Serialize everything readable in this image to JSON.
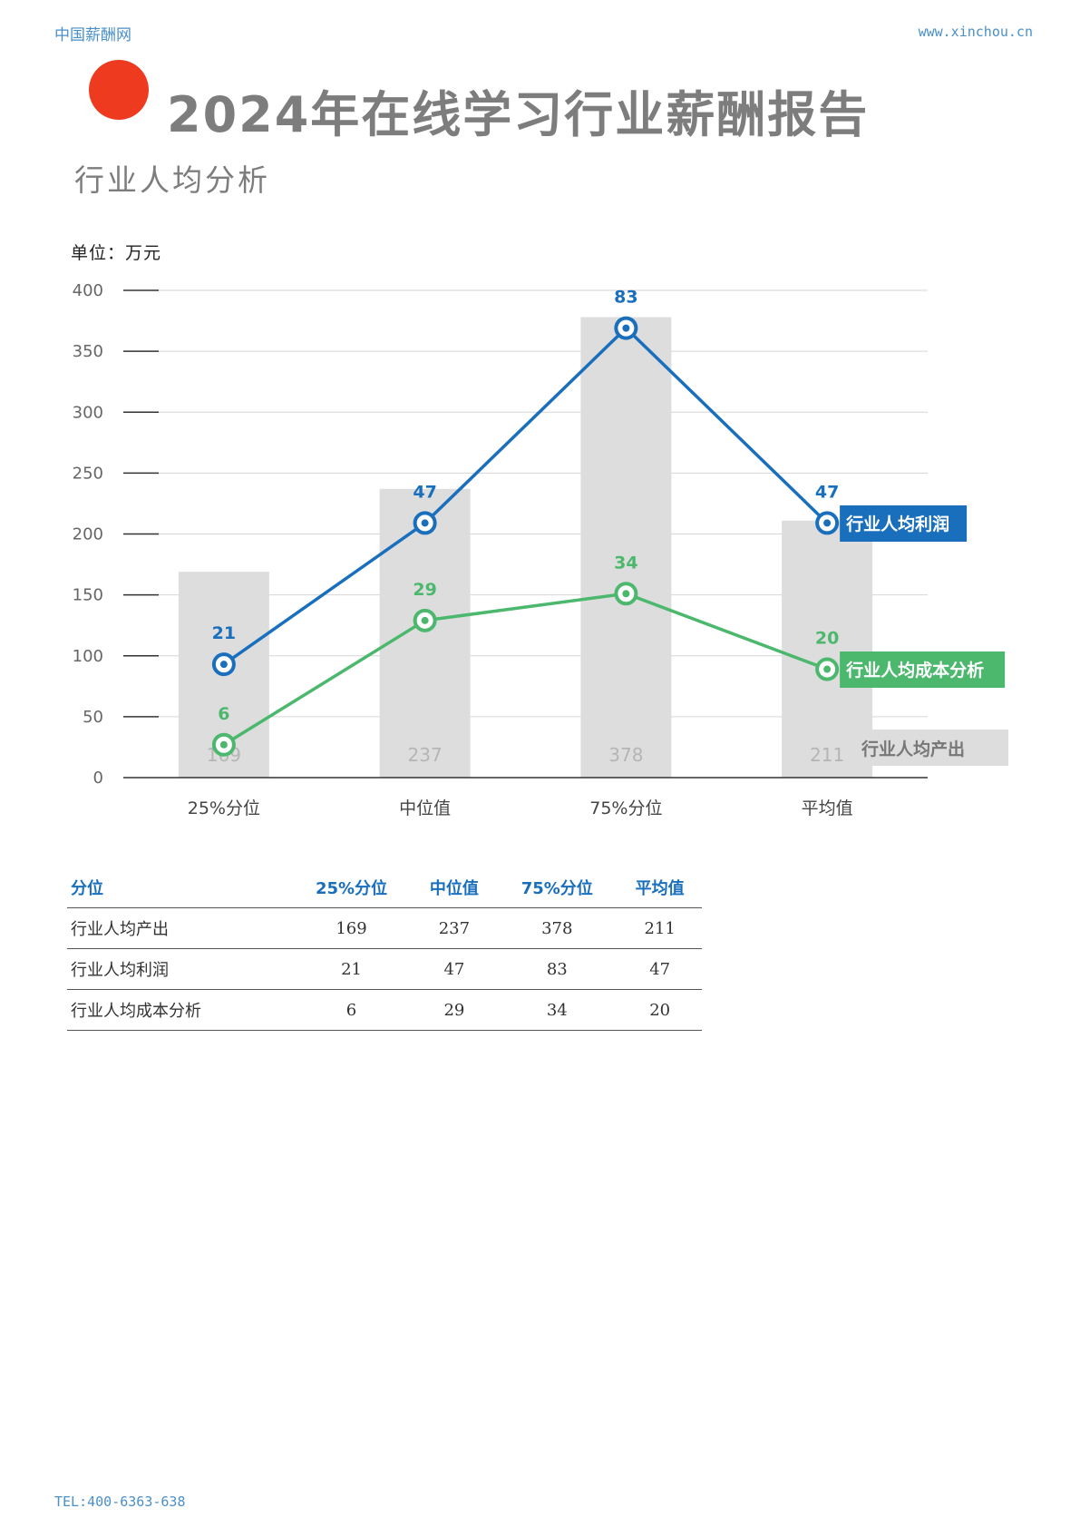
{
  "header": {
    "site_name": "中国薪酬网",
    "site_url": "www.xinchou.cn"
  },
  "page": {
    "title": "2024年在线学习行业薪酬报告",
    "subtitle": "行业人均分析",
    "unit_label": "单位：万元"
  },
  "colors": {
    "accent_dot": "#ee3a1f",
    "bar": "#dddddd",
    "profit": "#1a6fbd",
    "cost": "#4cb86e",
    "text_gray": "#7d7d7d"
  },
  "chart_data": {
    "type": "bar",
    "categories": [
      "25%分位",
      "中位值",
      "75%分位",
      "平均值"
    ],
    "ylim": [
      0,
      400
    ],
    "yticks": [
      0,
      50,
      100,
      150,
      200,
      250,
      300,
      350,
      400
    ],
    "grid": true,
    "series": [
      {
        "name": "行业人均产出",
        "kind": "bar",
        "values": [
          169,
          237,
          378,
          211
        ]
      },
      {
        "name": "行业人均利润",
        "kind": "line",
        "values": [
          21,
          47,
          83,
          47
        ],
        "plot_values": [
          93,
          209,
          369,
          209
        ]
      },
      {
        "name": "行业人均成本分析",
        "kind": "line",
        "values": [
          6,
          29,
          34,
          20
        ],
        "plot_values": [
          27,
          129,
          151,
          89
        ]
      }
    ]
  },
  "table": {
    "headers": [
      "分位",
      "25%分位",
      "中位值",
      "75%分位",
      "平均值"
    ],
    "rows": [
      {
        "label": "行业人均产出",
        "values": [
          "169",
          "237",
          "378",
          "211"
        ]
      },
      {
        "label": "行业人均利润",
        "values": [
          "21",
          "47",
          "83",
          "47"
        ]
      },
      {
        "label": "行业人均成本分析",
        "values": [
          "6",
          "29",
          "34",
          "20"
        ]
      }
    ]
  },
  "footer": {
    "tel": "TEL:400-6363-638"
  }
}
